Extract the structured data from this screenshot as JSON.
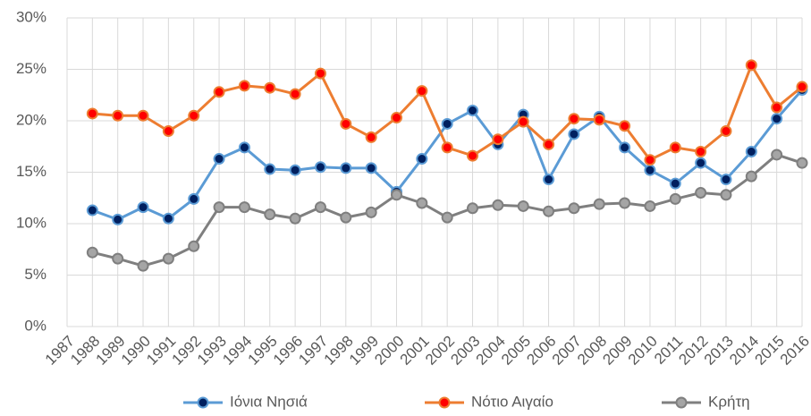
{
  "chart_data": {
    "type": "line",
    "categories": [
      "1987",
      "1988",
      "1989",
      "1990",
      "1991",
      "1992",
      "1993",
      "1994",
      "1995",
      "1996",
      "1997",
      "1998",
      "1999",
      "2000",
      "2001",
      "2002",
      "2003",
      "2004",
      "2005",
      "2006",
      "2007",
      "2008",
      "2009",
      "2010",
      "2011",
      "2012",
      "2013",
      "2014",
      "2015",
      "2016"
    ],
    "series": [
      {
        "name": "Ιόνια Νησιά",
        "color": "#5b9bd5",
        "marker_fill": "#002060",
        "values": [
          null,
          11.3,
          10.4,
          11.6,
          10.5,
          12.4,
          16.3,
          17.4,
          15.3,
          15.2,
          15.5,
          15.4,
          15.4,
          13.1,
          16.3,
          19.7,
          21.0,
          17.7,
          20.6,
          14.3,
          18.7,
          20.4,
          17.4,
          15.2,
          13.9,
          15.9,
          14.3,
          17.0,
          20.2,
          23.0
        ]
      },
      {
        "name": "Νότιο Αιγαίο",
        "color": "#ed7d31",
        "marker_fill": "#ff0000",
        "values": [
          null,
          20.7,
          20.5,
          20.5,
          19.0,
          20.5,
          22.8,
          23.4,
          23.2,
          22.6,
          24.6,
          19.7,
          18.4,
          20.3,
          22.9,
          17.4,
          16.6,
          18.2,
          19.9,
          17.7,
          20.2,
          20.1,
          19.5,
          16.2,
          17.4,
          17.0,
          19.0,
          25.4,
          21.3,
          23.3
        ]
      },
      {
        "name": "Κρήτη",
        "color": "#7f7f7f",
        "marker_fill": "#a5a5a5",
        "values": [
          null,
          7.2,
          6.6,
          5.9,
          6.6,
          7.8,
          11.6,
          11.6,
          10.9,
          10.5,
          11.6,
          10.6,
          11.1,
          12.8,
          12.0,
          10.6,
          11.5,
          11.8,
          11.7,
          11.2,
          11.5,
          11.9,
          12.0,
          11.7,
          12.4,
          13.0,
          12.8,
          14.6,
          16.7,
          15.9
        ]
      }
    ],
    "ylim": [
      0,
      30
    ],
    "yticks": [
      {
        "value": 0,
        "label": "0%"
      },
      {
        "value": 5,
        "label": "5%"
      },
      {
        "value": 10,
        "label": "10%"
      },
      {
        "value": 15,
        "label": "15%"
      },
      {
        "value": 20,
        "label": "20%"
      },
      {
        "value": 25,
        "label": "25%"
      },
      {
        "value": 30,
        "label": "30%"
      }
    ],
    "grid": true
  }
}
